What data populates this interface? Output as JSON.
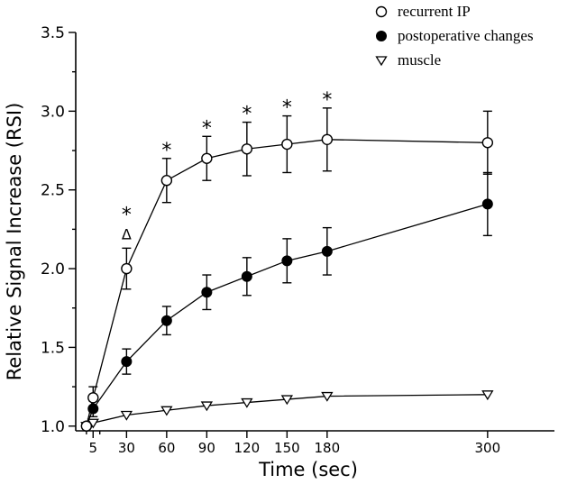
{
  "chart_data": {
    "type": "line",
    "xlabel": "Time (sec)",
    "ylabel": "Relative Signal Increase (RSI)",
    "xlim": [
      -8,
      350
    ],
    "ylim": [
      0.97,
      3.5
    ],
    "xticks": [
      5,
      30,
      60,
      90,
      120,
      150,
      180,
      300
    ],
    "yticks": [
      1.0,
      1.5,
      2.0,
      2.5,
      3.0,
      3.5
    ],
    "ytick_labels": [
      "1.0",
      "1.5",
      "2.0",
      "2.5",
      "3.0",
      "3.5"
    ],
    "legend_position": "top-right",
    "series": [
      {
        "name": "recurrent IP",
        "marker": "open-circle",
        "x": [
          0,
          5,
          30,
          60,
          90,
          120,
          150,
          180,
          300
        ],
        "y": [
          1.0,
          1.18,
          2.0,
          2.56,
          2.7,
          2.76,
          2.79,
          2.82,
          2.8
        ],
        "err": [
          0,
          0.07,
          0.13,
          0.14,
          0.14,
          0.17,
          0.18,
          0.2,
          0.2
        ]
      },
      {
        "name": "postoperative changes",
        "marker": "filled-circle",
        "x": [
          0,
          5,
          30,
          60,
          90,
          120,
          150,
          180,
          300
        ],
        "y": [
          1.0,
          1.11,
          1.41,
          1.67,
          1.85,
          1.95,
          2.05,
          2.11,
          2.41
        ],
        "err": [
          0,
          0.05,
          0.08,
          0.09,
          0.11,
          0.12,
          0.14,
          0.15,
          0.2
        ]
      },
      {
        "name": "muscle",
        "marker": "open-triangle-down",
        "x": [
          0,
          5,
          30,
          60,
          90,
          120,
          150,
          180,
          300
        ],
        "y": [
          1.0,
          1.02,
          1.07,
          1.1,
          1.13,
          1.15,
          1.17,
          1.19,
          1.2
        ],
        "err": [
          0,
          0,
          0,
          0,
          0,
          0,
          0,
          0,
          0
        ]
      }
    ],
    "annotations": {
      "asterisk_symbol": "*",
      "asterisk_x": [
        30,
        60,
        90,
        120,
        150,
        180
      ],
      "triangle_symbol": "Δ",
      "triangle_x": [
        30
      ]
    }
  }
}
